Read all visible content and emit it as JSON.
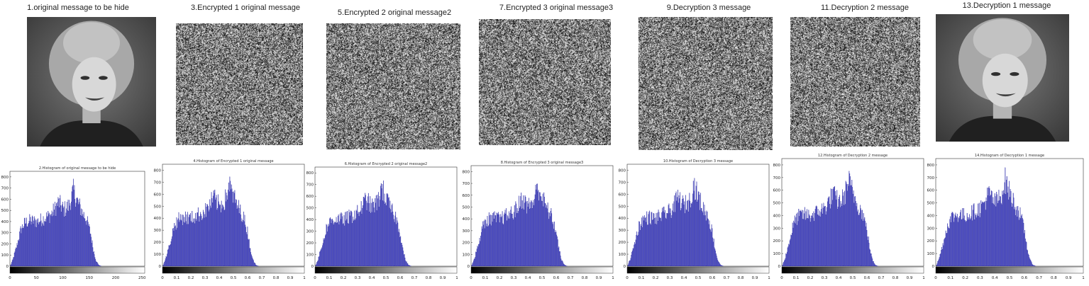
{
  "colors": {
    "bar": "#4c4cc6",
    "bar_edge": "#262690",
    "axis": "#333333",
    "photo_dark": "#3a3a3a",
    "photo_light": "#d8d8d8"
  },
  "panels": [
    {
      "id": "p1",
      "image": {
        "title": "1.original message to be hide",
        "kind": "photo"
      },
      "histogram": {
        "title": "2.Histogram of original message to be hide",
        "xticks": [
          "0",
          "50",
          "100",
          "150",
          "200",
          "250"
        ],
        "xmax": 255
      }
    },
    {
      "id": "p2",
      "image": {
        "title": "3.Encrypted 1 original message",
        "kind": "noise"
      },
      "histogram": {
        "title": "4.Histogram of Encrypted 1 original message",
        "xticks": [
          "0",
          "0.1",
          "0.2",
          "0.3",
          "0.4",
          "0.5",
          "0.6",
          "0.7",
          "0.8",
          "0.9",
          "1"
        ],
        "xmax": 1
      }
    },
    {
      "id": "p3",
      "image": {
        "title": "5.Encrypted 2 original message2",
        "kind": "noise"
      },
      "histogram": {
        "title": "6.Histogram of Encrypted 2 original message2",
        "xticks": [
          "0",
          "0.1",
          "0.2",
          "0.3",
          "0.4",
          "0.5",
          "0.6",
          "0.7",
          "0.8",
          "0.9",
          "1"
        ],
        "xmax": 1
      }
    },
    {
      "id": "p4",
      "image": {
        "title": "7.Encrypted 3 original message3",
        "kind": "noise"
      },
      "histogram": {
        "title": "8.Histogram of Encrypted 3 original message3",
        "xticks": [
          "0",
          "0.1",
          "0.2",
          "0.3",
          "0.4",
          "0.5",
          "0.6",
          "0.7",
          "0.8",
          "0.9",
          "1"
        ],
        "xmax": 1
      }
    },
    {
      "id": "p5",
      "image": {
        "title": "9.Decryption 3 message",
        "kind": "noise"
      },
      "histogram": {
        "title": "10.Histogram of Decryption 3 message",
        "xticks": [
          "0",
          "0.1",
          "0.2",
          "0.3",
          "0.4",
          "0.5",
          "0.6",
          "0.7",
          "0.8",
          "0.9",
          "1"
        ],
        "xmax": 1
      }
    },
    {
      "id": "p6",
      "image": {
        "title": "11.Decryption 2 message",
        "kind": "noise"
      },
      "histogram": {
        "title": "12.Histogram of Decryption 2 message",
        "xticks": [
          "0",
          "0.1",
          "0.2",
          "0.3",
          "0.4",
          "0.5",
          "0.6",
          "0.7",
          "0.8",
          "0.9",
          "1"
        ],
        "xmax": 1
      }
    },
    {
      "id": "p7",
      "image": {
        "title": "13.Decryption 1 message",
        "kind": "photo"
      },
      "histogram": {
        "title": "14.Histogram of Decryption 1 message",
        "xticks": [
          "0",
          "0.1",
          "0.2",
          "0.3",
          "0.4",
          "0.5",
          "0.6",
          "0.7",
          "0.8",
          "0.9",
          "1"
        ],
        "xmax": 1
      }
    }
  ],
  "histogram_shared": {
    "yticks": [
      "0",
      "100",
      "200",
      "300",
      "400",
      "500",
      "600",
      "700",
      "800"
    ],
    "ymax": 850,
    "profile": [
      {
        "x": 0.0,
        "y": 0
      },
      {
        "x": 0.02,
        "y": 60
      },
      {
        "x": 0.05,
        "y": 190
      },
      {
        "x": 0.08,
        "y": 340
      },
      {
        "x": 0.11,
        "y": 400
      },
      {
        "x": 0.15,
        "y": 420
      },
      {
        "x": 0.2,
        "y": 410
      },
      {
        "x": 0.25,
        "y": 440
      },
      {
        "x": 0.3,
        "y": 470
      },
      {
        "x": 0.33,
        "y": 520
      },
      {
        "x": 0.36,
        "y": 590
      },
      {
        "x": 0.4,
        "y": 520
      },
      {
        "x": 0.44,
        "y": 560
      },
      {
        "x": 0.47,
        "y": 700
      },
      {
        "x": 0.5,
        "y": 600
      },
      {
        "x": 0.54,
        "y": 490
      },
      {
        "x": 0.57,
        "y": 430
      },
      {
        "x": 0.6,
        "y": 300
      },
      {
        "x": 0.62,
        "y": 150
      },
      {
        "x": 0.64,
        "y": 50
      },
      {
        "x": 0.66,
        "y": 10
      },
      {
        "x": 0.68,
        "y": 0
      },
      {
        "x": 1.0,
        "y": 0
      }
    ]
  }
}
